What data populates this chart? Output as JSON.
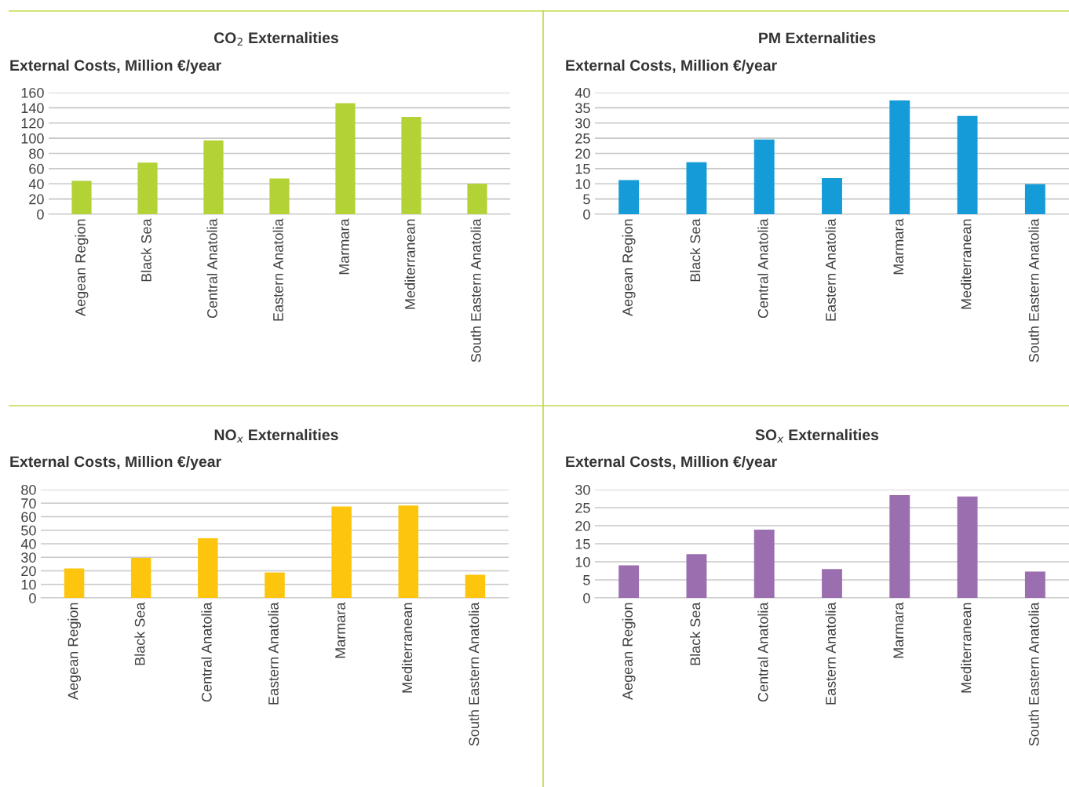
{
  "chart_data": [
    {
      "type": "bar",
      "title": "CO$_{2}$ Externalities",
      "ylabel": "External Costs, Million €/year",
      "categories": [
        "Aegean Region",
        "Black Sea",
        "Central Anatolia",
        "Eastern Anatolia",
        "Marmara",
        "Mediterranean",
        "South Eastern Anatolia"
      ],
      "values": [
        44,
        68,
        97,
        47,
        146,
        128,
        40
      ],
      "color": "#b2d235",
      "ylim": [
        0,
        160
      ],
      "yticks": [
        0,
        20,
        40,
        60,
        80,
        100,
        120,
        140,
        160
      ],
      "grid": "y",
      "legend": false
    },
    {
      "type": "bar",
      "title": "PM Externalities",
      "ylabel": "External Costs, Million €/year",
      "categories": [
        "Aegean Region",
        "Black Sea",
        "Central Anatolia",
        "Eastern Anatolia",
        "Marmara",
        "Mediterranean",
        "South Eastern Anatolia"
      ],
      "values": [
        11.2,
        17.1,
        24.6,
        11.9,
        37.4,
        32.3,
        9.9
      ],
      "color": "#159cd8",
      "ylim": [
        0,
        40
      ],
      "yticks": [
        0,
        5,
        10,
        15,
        20,
        25,
        30,
        35,
        40
      ],
      "grid": "y",
      "legend": false
    },
    {
      "type": "bar",
      "title": "NO$_{x}$ Externalities",
      "ylabel": "External Costs, Million €/year",
      "categories": [
        "Aegean Region",
        "Black Sea",
        "Central Anatolia",
        "Eastern Anatolia",
        "Marmara",
        "Mediterranean",
        "South Eastern Anatolia"
      ],
      "values": [
        21.8,
        29.5,
        44,
        18.8,
        67.6,
        68.3,
        17.1
      ],
      "color": "#fdc50d",
      "ylim": [
        0,
        80
      ],
      "yticks": [
        0,
        10,
        20,
        30,
        40,
        50,
        60,
        70,
        80
      ],
      "grid": "y",
      "legend": false
    },
    {
      "type": "bar",
      "title": "SO$_{x}$ Externalities",
      "ylabel": "External Costs, Million €/year",
      "categories": [
        "Aegean Region",
        "Black Sea",
        "Central Anatolia",
        "Eastern Anatolia",
        "Marmara",
        "Mediterranean",
        "South Eastern Anatolia"
      ],
      "values": [
        9.0,
        12.1,
        18.9,
        8.0,
        28.5,
        28.1,
        7.3
      ],
      "color": "#9b6faf",
      "ylim": [
        0,
        30
      ],
      "yticks": [
        0,
        5,
        10,
        15,
        20,
        25,
        30
      ],
      "grid": "y",
      "legend": false
    }
  ]
}
